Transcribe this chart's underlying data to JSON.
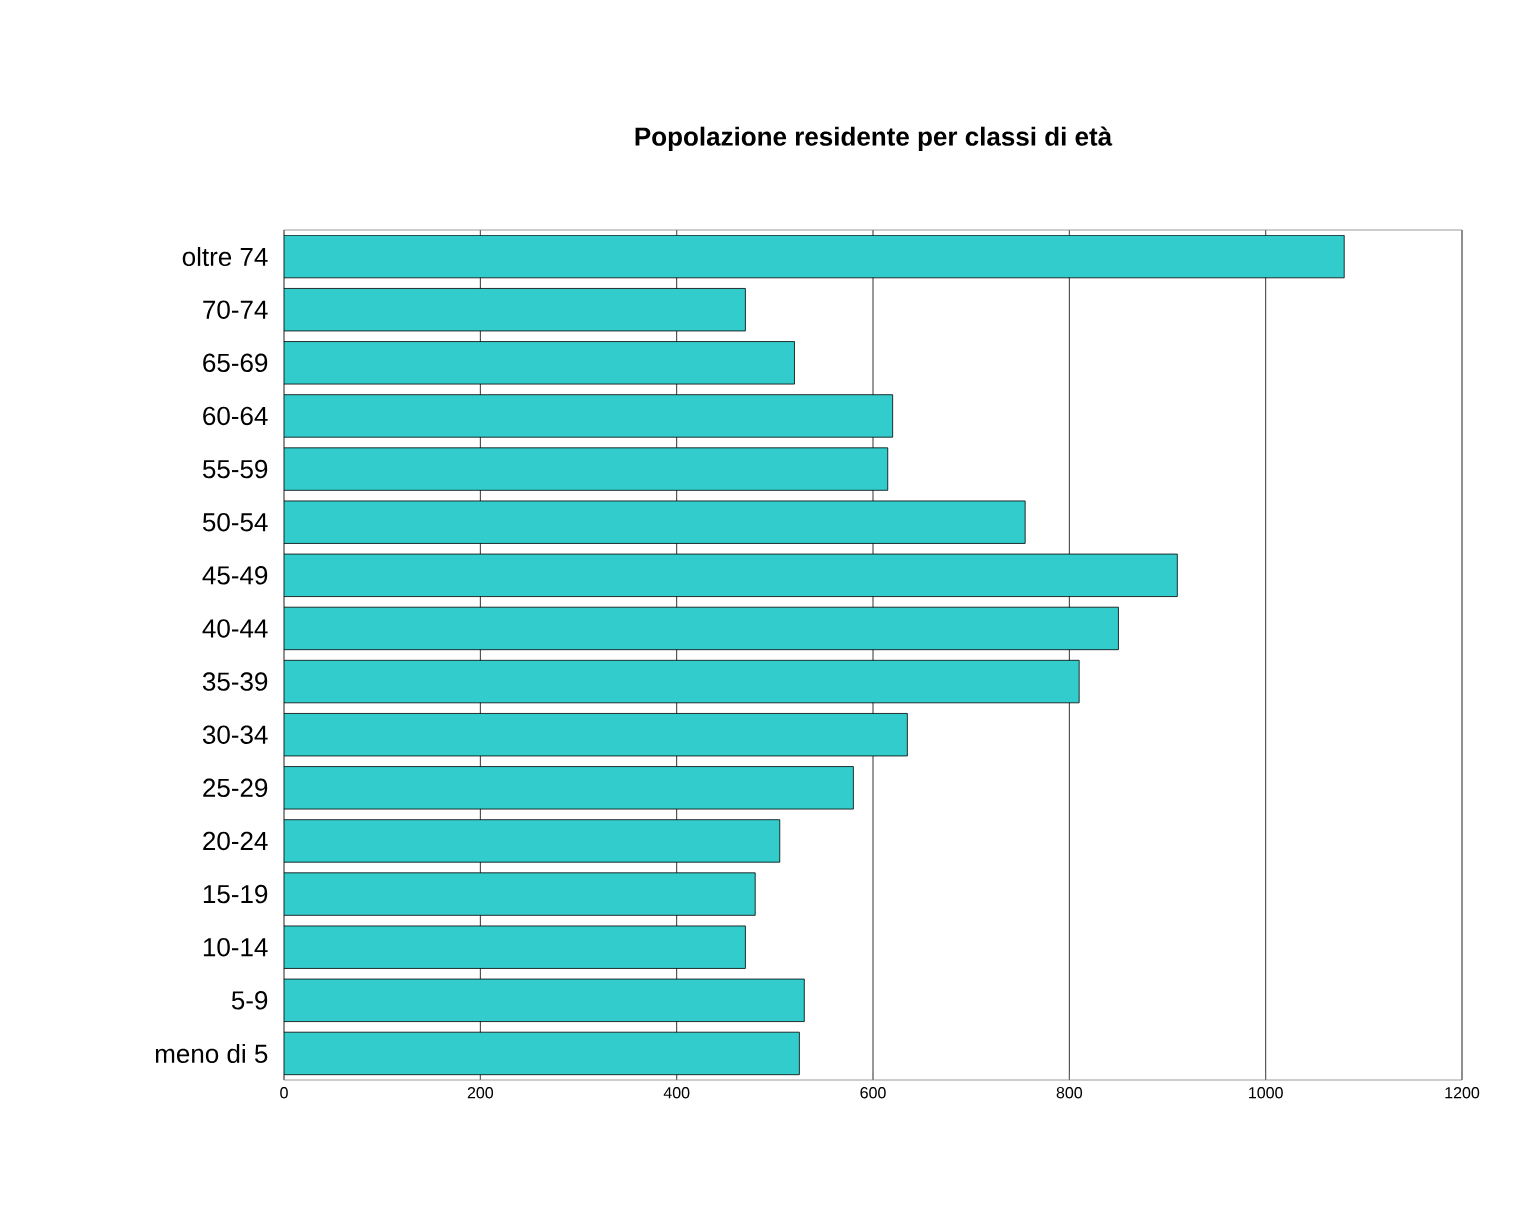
{
  "chart_data": {
    "type": "bar",
    "orientation": "horizontal",
    "title": "Popolazione residente per classi di età",
    "categories": [
      "oltre 74",
      "70-74",
      "65-69",
      "60-64",
      "55-59",
      "50-54",
      "45-49",
      "40-44",
      "35-39",
      "30-34",
      "25-29",
      "20-24",
      "15-19",
      "10-14",
      "5-9",
      "meno di 5"
    ],
    "values": [
      1080,
      470,
      520,
      620,
      615,
      755,
      910,
      850,
      810,
      635,
      580,
      505,
      480,
      470,
      530,
      525
    ],
    "color": "#33cccc",
    "xlim": [
      0,
      1200
    ],
    "xticks": [
      0,
      200,
      400,
      600,
      800,
      1000,
      1200
    ],
    "grid": "x"
  }
}
